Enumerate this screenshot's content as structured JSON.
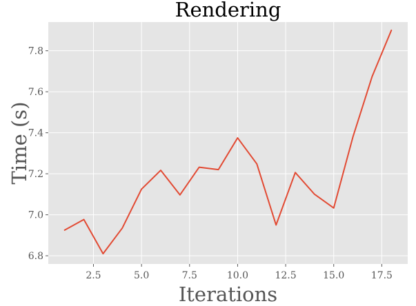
{
  "chart_data": {
    "type": "line",
    "title": "Rendering",
    "xlabel": "Iterations",
    "ylabel": "Time (s)",
    "xlim": [
      0.15,
      18.85
    ],
    "ylim": [
      6.76,
      7.94
    ],
    "xticks": [
      2.5,
      5.0,
      7.5,
      10.0,
      12.5,
      15.0,
      17.5
    ],
    "xtick_labels": [
      "2.5",
      "5.0",
      "7.5",
      "10.0",
      "12.5",
      "15.0",
      "17.5"
    ],
    "yticks": [
      6.8,
      7.0,
      7.2,
      7.4,
      7.6,
      7.8
    ],
    "ytick_labels": [
      "6.8",
      "7.0",
      "7.2",
      "7.4",
      "7.6",
      "7.8"
    ],
    "grid": true,
    "legend": "none",
    "background_color": "#e5e5e5",
    "series": [
      {
        "color": "#e24a33",
        "x": [
          1,
          2,
          3,
          4,
          5,
          6,
          7,
          8,
          9,
          10,
          11,
          12,
          13,
          14,
          15,
          16,
          17,
          18
        ],
        "y": [
          6.925,
          6.977,
          6.81,
          6.935,
          7.125,
          7.217,
          7.097,
          7.232,
          7.22,
          7.375,
          7.248,
          6.95,
          7.206,
          7.1,
          7.033,
          7.38,
          7.675,
          7.9
        ]
      }
    ]
  }
}
